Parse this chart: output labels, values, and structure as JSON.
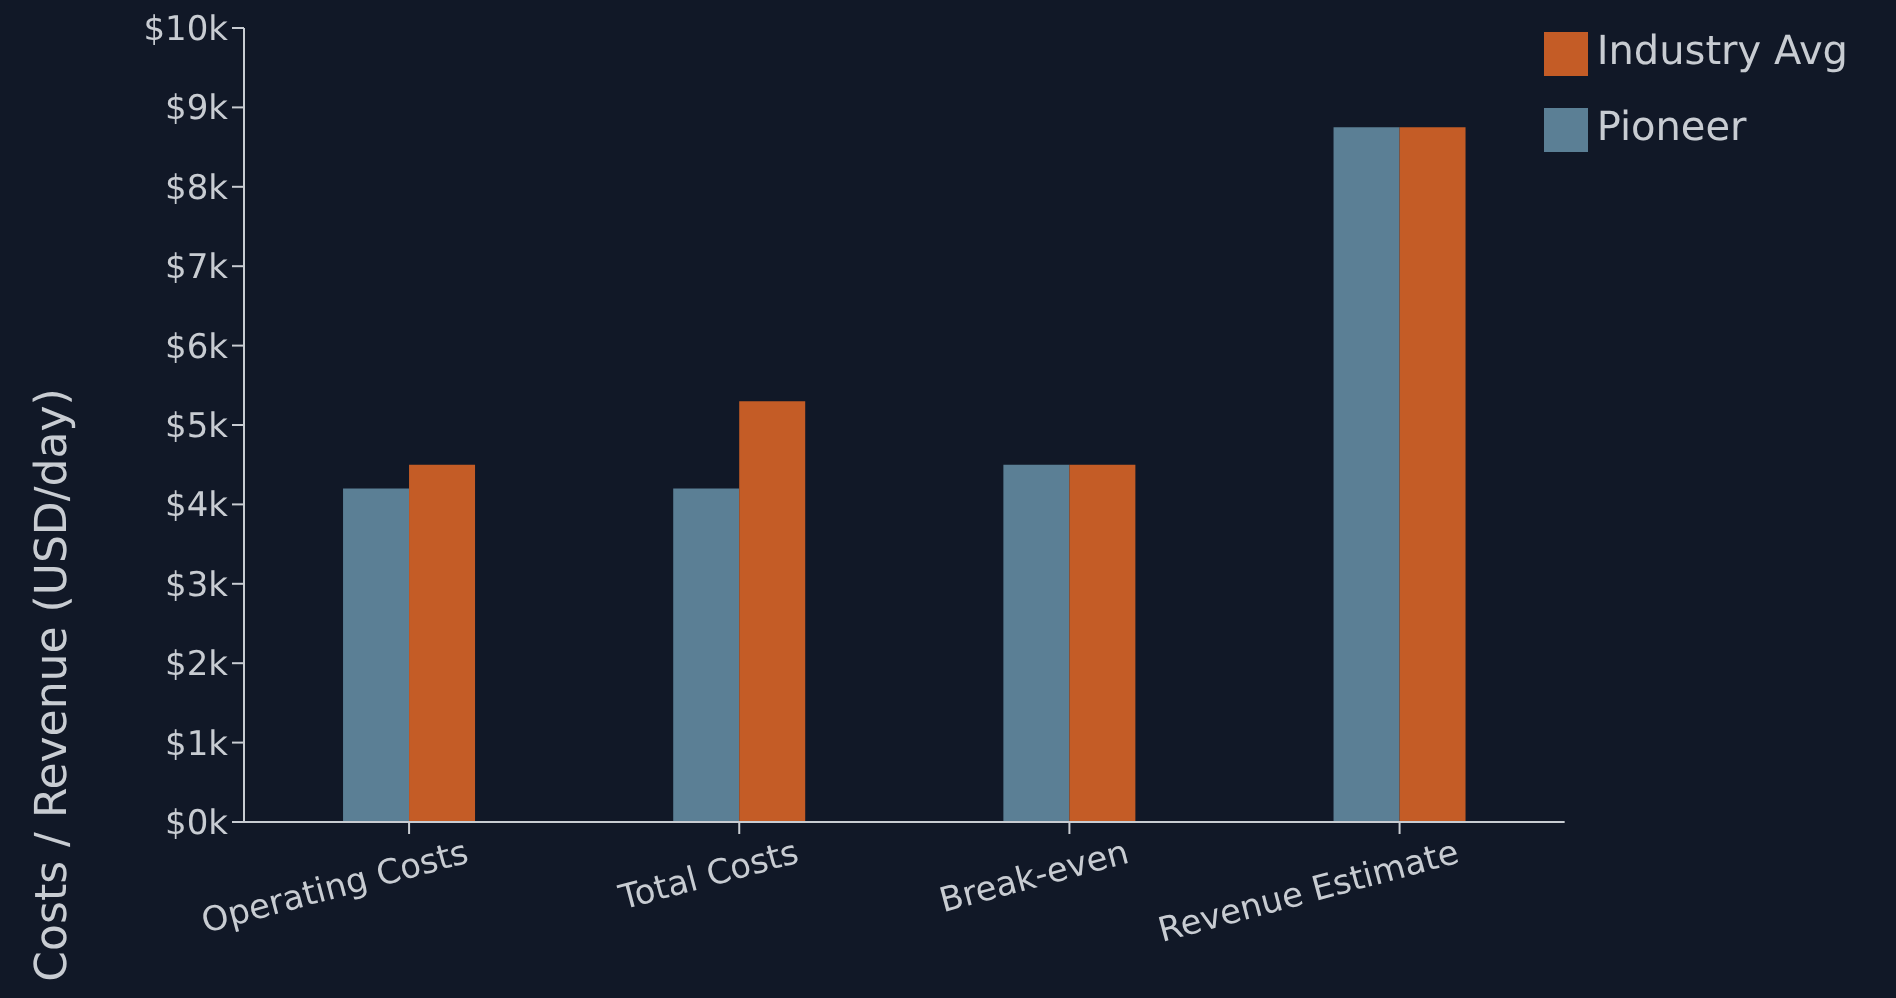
{
  "chart_data": {
    "type": "bar",
    "ylabel": "Costs / Revenue (USD/day)",
    "categories": [
      "Operating Costs",
      "Total Costs",
      "Break-even",
      "Revenue Estimate"
    ],
    "series": [
      {
        "name": "Pioneer",
        "color": "#5b7f95",
        "values": [
          4200,
          4200,
          4500,
          8750
        ]
      },
      {
        "name": "Industry Avg",
        "color": "#c45c26",
        "values": [
          4500,
          5300,
          4500,
          8750
        ]
      }
    ],
    "ylim": [
      0,
      10000
    ],
    "yticks": [
      {
        "value": 0,
        "label": "$0k"
      },
      {
        "value": 1000,
        "label": "$1k"
      },
      {
        "value": 2000,
        "label": "$2k"
      },
      {
        "value": 3000,
        "label": "$3k"
      },
      {
        "value": 4000,
        "label": "$4k"
      },
      {
        "value": 5000,
        "label": "$5k"
      },
      {
        "value": 6000,
        "label": "$6k"
      },
      {
        "value": 7000,
        "label": "$7k"
      },
      {
        "value": 8000,
        "label": "$8k"
      },
      {
        "value": 9000,
        "label": "$9k"
      },
      {
        "value": 10000,
        "label": "$10k"
      }
    ],
    "grid": false,
    "legend": "top right"
  }
}
